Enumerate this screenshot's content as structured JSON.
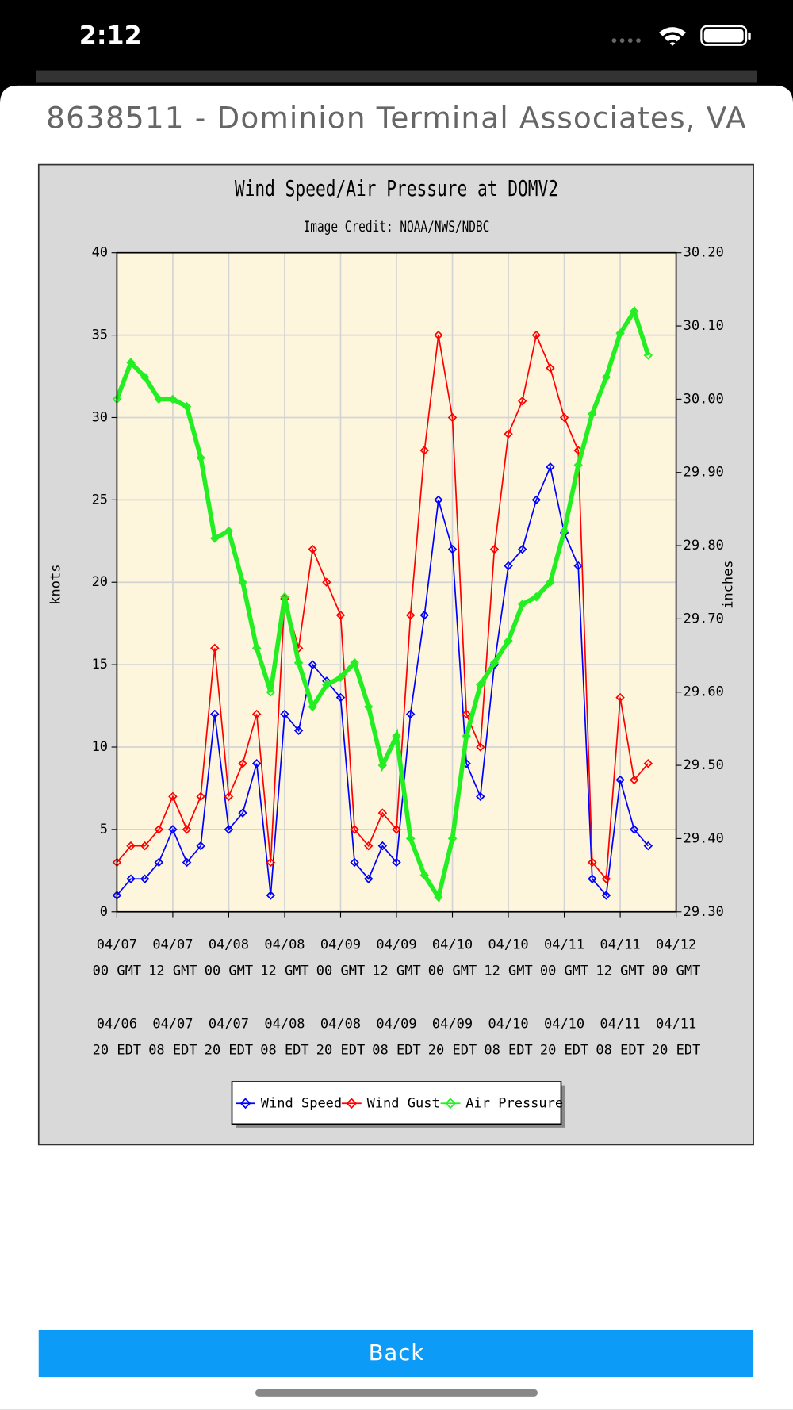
{
  "status_bar": {
    "time": "2:12"
  },
  "header": {
    "title": "8638511 - Dominion Terminal Associates, VA"
  },
  "chart_data": {
    "type": "line",
    "title": "Wind Speed/Air Pressure at DOMV2",
    "subtitle": "Image Credit: NOAA/NWS/NDBC",
    "y_label": "knots",
    "y2_label": "inches",
    "x": [
      0,
      3,
      6,
      9,
      12,
      15,
      18,
      21,
      24,
      27,
      30,
      33,
      36,
      39,
      42,
      45,
      48,
      51,
      54,
      57,
      60,
      63,
      66,
      69,
      72,
      75,
      78,
      81,
      84,
      87,
      90,
      93,
      96,
      99,
      102,
      105,
      108,
      111,
      114
    ],
    "series": [
      {
        "name": "Wind Speed",
        "color": "#0000ff",
        "values": [
          1,
          2,
          2,
          3,
          5,
          3,
          4,
          12,
          5,
          6,
          9,
          1,
          12,
          11,
          15,
          14,
          13,
          3,
          2,
          4,
          3,
          12,
          18,
          25,
          22,
          9,
          7,
          15,
          21,
          22,
          25,
          27,
          23,
          21,
          2,
          1,
          8,
          5,
          4
        ]
      },
      {
        "name": "Wind Gust",
        "color": "#ff0000",
        "values": [
          3,
          4,
          4,
          5,
          7,
          5,
          7,
          16,
          7,
          9,
          12,
          3,
          19,
          16,
          22,
          20,
          18,
          5,
          4,
          6,
          5,
          18,
          28,
          35,
          30,
          12,
          10,
          22,
          29,
          31,
          35,
          33,
          30,
          28,
          3,
          2,
          13,
          8,
          9
        ]
      },
      {
        "name": "Air Pressure",
        "color": "#22ee22",
        "axis": "y2",
        "values": [
          30.0,
          30.05,
          30.03,
          30.0,
          30.0,
          29.99,
          29.92,
          29.81,
          29.82,
          29.75,
          29.66,
          29.6,
          29.73,
          29.64,
          29.58,
          29.61,
          29.62,
          29.64,
          29.58,
          29.5,
          29.54,
          29.4,
          29.35,
          29.32,
          29.4,
          29.54,
          29.61,
          29.64,
          29.67,
          29.72,
          29.73,
          29.75,
          29.82,
          29.91,
          29.98,
          30.03,
          30.09,
          30.12,
          30.06
        ]
      }
    ],
    "xlim": [
      0,
      120
    ],
    "xticks": [
      {
        "value": 0,
        "label": "04/07"
      },
      {
        "value": 12,
        "label": "04/07"
      },
      {
        "value": 24,
        "label": "04/08"
      },
      {
        "value": 36,
        "label": "04/08"
      },
      {
        "value": 48,
        "label": "04/09"
      },
      {
        "value": 60,
        "label": "04/09"
      },
      {
        "value": 72,
        "label": "04/10"
      },
      {
        "value": 84,
        "label": "04/10"
      },
      {
        "value": 96,
        "label": "04/11"
      },
      {
        "value": 108,
        "label": "04/11"
      },
      {
        "value": 120,
        "label": "04/12"
      }
    ],
    "xtick_times": [
      "00 GMT",
      "12 GMT",
      "00 GMT",
      "12 GMT",
      "00 GMT",
      "12 GMT",
      "00 GMT",
      "12 GMT",
      "00 GMT",
      "12 GMT",
      "00 GMT"
    ],
    "xticks_local": [
      {
        "value": 0,
        "label": "04/06"
      },
      {
        "value": 12,
        "label": "04/07"
      },
      {
        "value": 24,
        "label": "04/07"
      },
      {
        "value": 36,
        "label": "04/08"
      },
      {
        "value": 48,
        "label": "04/08"
      },
      {
        "value": 60,
        "label": "04/09"
      },
      {
        "value": 72,
        "label": "04/09"
      },
      {
        "value": 84,
        "label": "04/10"
      },
      {
        "value": 96,
        "label": "04/10"
      },
      {
        "value": 108,
        "label": "04/11"
      },
      {
        "value": 120,
        "label": "04/11"
      }
    ],
    "xtick_local_times": [
      "20 EDT",
      "08 EDT",
      "20 EDT",
      "08 EDT",
      "20 EDT",
      "08 EDT",
      "20 EDT",
      "08 EDT",
      "20 EDT",
      "08 EDT",
      "20 EDT"
    ],
    "ylim": [
      0,
      40
    ],
    "yticks": [
      0,
      5,
      10,
      15,
      20,
      25,
      30,
      35,
      40
    ],
    "y2lim": [
      29.3,
      30.2
    ],
    "y2ticks": [
      {
        "value": 29.3,
        "label": "29.30"
      },
      {
        "value": 29.4,
        "label": "29.40"
      },
      {
        "value": 29.5,
        "label": "29.50"
      },
      {
        "value": 29.6,
        "label": "29.60"
      },
      {
        "value": 29.7,
        "label": "29.70"
      },
      {
        "value": 29.8,
        "label": "29.80"
      },
      {
        "value": 29.9,
        "label": "29.90"
      },
      {
        "value": 30.0,
        "label": "30.00"
      },
      {
        "value": 30.1,
        "label": "30.10"
      },
      {
        "value": 30.2,
        "label": "30.20"
      }
    ],
    "grid": true,
    "legend": "bottom"
  },
  "button": {
    "label": "Back"
  }
}
